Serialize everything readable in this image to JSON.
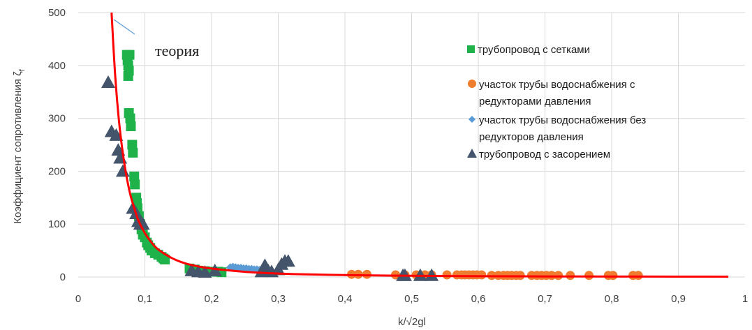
{
  "chart_data": {
    "type": "scatter",
    "xlabel": "k/√2gl",
    "ylabel": "Коэффициент сопротивления ζ",
    "ylabel_sub": "f",
    "xlim": [
      0,
      1
    ],
    "ylim": [
      0,
      500
    ],
    "x_ticks": [
      0,
      0.1,
      0.2,
      0.3,
      0.4,
      0.5,
      0.6,
      0.7,
      0.8,
      0.9,
      1
    ],
    "x_tick_labels": [
      "0",
      "0,1",
      "0,2",
      "0,3",
      "0,4",
      "0,5",
      "0,6",
      "0,7",
      "0,8",
      "0,9",
      "1"
    ],
    "y_ticks": [
      0,
      100,
      200,
      300,
      400,
      500
    ],
    "y_tick_labels": [
      "0",
      "100",
      "200",
      "300",
      "400",
      "500"
    ],
    "grid": true,
    "legend_position": "right",
    "annotation": "теория",
    "series": [
      {
        "name": "трубопровод с сетками",
        "marker": "square",
        "color": "#1fb24a",
        "points": [
          [
            0.073,
            420
          ],
          [
            0.074,
            410
          ],
          [
            0.075,
            400
          ],
          [
            0.076,
            390
          ],
          [
            0.077,
            420
          ],
          [
            0.075,
            380
          ],
          [
            0.076,
            310
          ],
          [
            0.078,
            300
          ],
          [
            0.079,
            285
          ],
          [
            0.081,
            250
          ],
          [
            0.082,
            235
          ],
          [
            0.084,
            190
          ],
          [
            0.085,
            175
          ],
          [
            0.087,
            150
          ],
          [
            0.088,
            140
          ],
          [
            0.089,
            130
          ],
          [
            0.091,
            115
          ],
          [
            0.093,
            100
          ],
          [
            0.095,
            90
          ],
          [
            0.097,
            80
          ],
          [
            0.1,
            75
          ],
          [
            0.103,
            65
          ],
          [
            0.105,
            60
          ],
          [
            0.108,
            55
          ],
          [
            0.11,
            50
          ],
          [
            0.115,
            45
          ],
          [
            0.12,
            42
          ],
          [
            0.125,
            38
          ],
          [
            0.128,
            35
          ],
          [
            0.13,
            33
          ],
          [
            0.167,
            16
          ],
          [
            0.175,
            14
          ],
          [
            0.18,
            12
          ],
          [
            0.19,
            11
          ],
          [
            0.2,
            10
          ],
          [
            0.21,
            10
          ],
          [
            0.215,
            9
          ]
        ]
      },
      {
        "name": "участок трубы водоснабжения с редукторами давления",
        "marker": "circle",
        "color": "#f07d2f",
        "points": [
          [
            0.41,
            5
          ],
          [
            0.42,
            5
          ],
          [
            0.433,
            5
          ],
          [
            0.476,
            4
          ],
          [
            0.49,
            4
          ],
          [
            0.507,
            4
          ],
          [
            0.52,
            4
          ],
          [
            0.53,
            4
          ],
          [
            0.553,
            4
          ],
          [
            0.568,
            4
          ],
          [
            0.575,
            4
          ],
          [
            0.58,
            4
          ],
          [
            0.586,
            4
          ],
          [
            0.592,
            4
          ],
          [
            0.598,
            4
          ],
          [
            0.605,
            4
          ],
          [
            0.62,
            3
          ],
          [
            0.63,
            3
          ],
          [
            0.638,
            3
          ],
          [
            0.644,
            3
          ],
          [
            0.65,
            3
          ],
          [
            0.657,
            3
          ],
          [
            0.663,
            3
          ],
          [
            0.68,
            3
          ],
          [
            0.688,
            3
          ],
          [
            0.695,
            3
          ],
          [
            0.702,
            3
          ],
          [
            0.71,
            3
          ],
          [
            0.72,
            3
          ],
          [
            0.738,
            3
          ],
          [
            0.766,
            3
          ],
          [
            0.795,
            3
          ],
          [
            0.802,
            3
          ],
          [
            0.832,
            3
          ],
          [
            0.84,
            3
          ]
        ]
      },
      {
        "name": "участок трубы водоснабжения  без редукторов давления",
        "marker": "diamond",
        "color": "#5b9bd5",
        "points": [
          [
            0.228,
            18
          ],
          [
            0.232,
            19
          ],
          [
            0.236,
            18
          ],
          [
            0.24,
            17
          ],
          [
            0.244,
            17
          ],
          [
            0.248,
            16
          ],
          [
            0.252,
            16
          ],
          [
            0.256,
            15
          ],
          [
            0.26,
            15
          ],
          [
            0.264,
            14
          ],
          [
            0.268,
            14
          ],
          [
            0.272,
            13
          ],
          [
            0.276,
            13
          ],
          [
            0.28,
            12
          ]
        ]
      },
      {
        "name": "трубопровод с засорением",
        "marker": "triangle",
        "color": "#44546a",
        "points": [
          [
            0.045,
            368
          ],
          [
            0.05,
            275
          ],
          [
            0.057,
            268
          ],
          [
            0.06,
            240
          ],
          [
            0.063,
            225
          ],
          [
            0.067,
            200
          ],
          [
            0.082,
            130
          ],
          [
            0.087,
            120
          ],
          [
            0.09,
            105
          ],
          [
            0.093,
            100
          ],
          [
            0.097,
            100
          ],
          [
            0.17,
            12
          ],
          [
            0.18,
            10
          ],
          [
            0.19,
            9
          ],
          [
            0.205,
            12
          ],
          [
            0.275,
            10
          ],
          [
            0.28,
            22
          ],
          [
            0.285,
            12
          ],
          [
            0.3,
            14
          ],
          [
            0.305,
            24
          ],
          [
            0.31,
            30
          ],
          [
            0.315,
            30
          ],
          [
            0.29,
            10
          ],
          [
            0.487,
            3
          ],
          [
            0.49,
            3
          ],
          [
            0.513,
            3
          ],
          [
            0.53,
            3
          ]
        ]
      }
    ],
    "curves": [
      {
        "name": "теория",
        "color": "#ff0000",
        "x": [
          0.05,
          0.055,
          0.06,
          0.065,
          0.07,
          0.075,
          0.08,
          0.09,
          0.1,
          0.11,
          0.12,
          0.14,
          0.16,
          0.18,
          0.2,
          0.25,
          0.3,
          0.35,
          0.4,
          0.5,
          0.6,
          0.7,
          0.8,
          0.9,
          0.975
        ],
        "y": [
          500,
          390,
          310,
          252,
          208,
          174,
          147,
          108,
          83,
          65,
          52,
          36,
          26,
          20,
          16,
          9.8,
          6.5,
          4.7,
          3.5,
          2.2,
          1.5,
          1.1,
          0.85,
          0.67,
          0.57
        ]
      }
    ]
  }
}
